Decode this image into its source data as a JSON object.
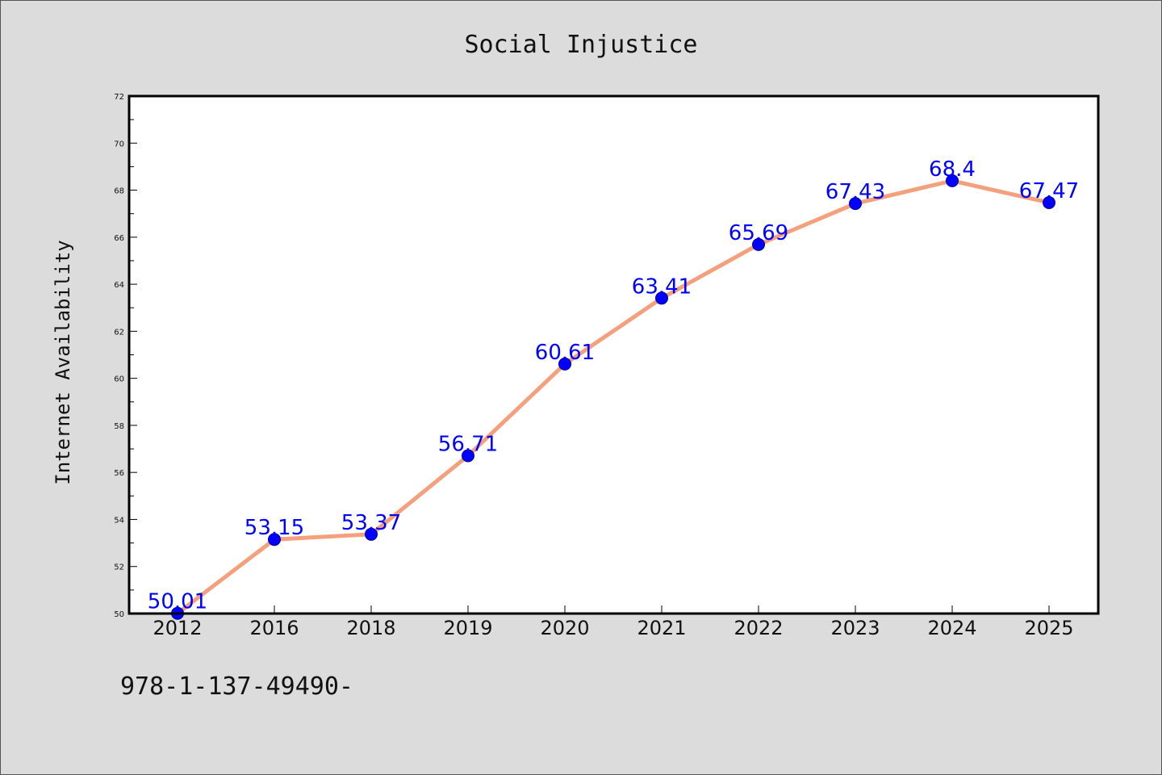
{
  "chart_data": {
    "type": "line",
    "title": "Social Injustice",
    "xlabel": "",
    "ylabel": "Internet Availability",
    "categories": [
      "2012",
      "2016",
      "2018",
      "2019",
      "2020",
      "2021",
      "2022",
      "2023",
      "2024",
      "2025"
    ],
    "series": [
      {
        "values": [
          50.01,
          53.15,
          53.37,
          56.71,
          60.61,
          63.41,
          65.69,
          67.43,
          68.4,
          67.47
        ],
        "labels": [
          "50.01",
          "53.15",
          "53.37",
          "56.71",
          "60.61",
          "63.41",
          "65.69",
          "67.43",
          "68.4",
          "67.47"
        ],
        "line_color": "#f4a07c",
        "marker_color": "#0000ff",
        "label_color": "#0000ff"
      }
    ],
    "ylim": [
      50,
      72
    ],
    "yticks": [
      "50",
      "52",
      "54",
      "56",
      "58",
      "60",
      "62",
      "64",
      "66",
      "68",
      "70",
      "72"
    ],
    "grid": false,
    "legend": "none",
    "plot_background": "#ffffff",
    "figure_background": "#dcdcdc"
  },
  "footer": {
    "code": "978-1-137-49490-"
  }
}
